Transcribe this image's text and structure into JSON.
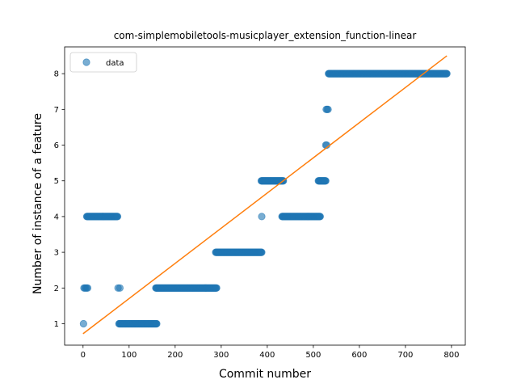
{
  "chart_data": {
    "type": "scatter",
    "title": "com-simplemobiletools-musicplayer_extension_function-linear",
    "xlabel": "Commit number",
    "ylabel": "Number of instance of a feature",
    "xlim": [
      -40,
      830
    ],
    "ylim": [
      0.4,
      8.75
    ],
    "xticks": [
      0,
      100,
      200,
      300,
      400,
      500,
      600,
      700,
      800
    ],
    "yticks": [
      1,
      2,
      3,
      4,
      5,
      6,
      7,
      8
    ],
    "grid": false,
    "legend": {
      "placement": "top-left",
      "entries": [
        "data"
      ]
    },
    "colors": {
      "data": "#1f77b4",
      "fit": "#ff7f0e"
    },
    "series": [
      {
        "name": "data",
        "kind": "scatter",
        "points": [
          [
            1,
            1
          ],
          [
            2,
            2
          ],
          [
            4,
            2
          ],
          [
            6,
            2
          ],
          [
            8,
            2
          ],
          [
            10,
            2
          ],
          [
            76,
            2
          ],
          [
            80,
            2
          ],
          [
            388,
            4
          ],
          [
            527,
            6
          ],
          [
            529,
            6
          ],
          [
            528,
            7
          ],
          [
            530,
            7
          ],
          [
            532,
            7
          ]
        ],
        "runs": [
          {
            "x_start": 8,
            "x_end": 75,
            "y": 4
          },
          {
            "x_start": 78,
            "x_end": 160,
            "y": 1
          },
          {
            "x_start": 158,
            "x_end": 290,
            "y": 2
          },
          {
            "x_start": 288,
            "x_end": 388,
            "y": 3
          },
          {
            "x_start": 387,
            "x_end": 435,
            "y": 5
          },
          {
            "x_start": 432,
            "x_end": 515,
            "y": 4
          },
          {
            "x_start": 511,
            "x_end": 527,
            "y": 5
          },
          {
            "x_start": 533,
            "x_end": 790,
            "y": 8
          }
        ]
      },
      {
        "name": "",
        "kind": "line",
        "x": [
          0,
          790
        ],
        "y": [
          0.72,
          8.5
        ]
      }
    ]
  }
}
